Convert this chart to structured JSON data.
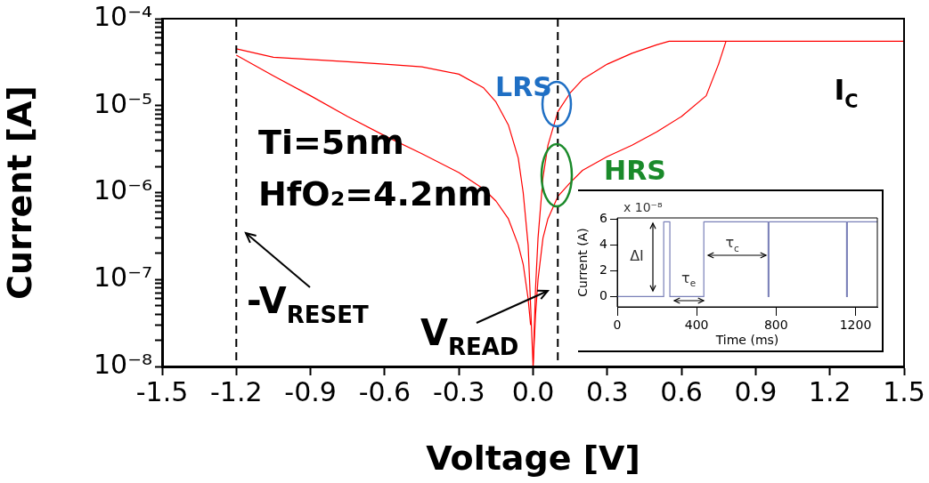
{
  "chart_data": [
    {
      "type": "line",
      "xlabel": "Voltage [V]",
      "ylabel": "Current [A]",
      "log": "y",
      "grid": false,
      "legend": false,
      "xlim": [
        -1.5,
        1.5
      ],
      "xticks": [
        -1.5,
        -1.2,
        -0.9,
        -0.6,
        -0.3,
        {
          "value": 0,
          "label": "0.0"
        },
        0.3,
        0.6,
        0.9,
        1.2,
        1.5
      ],
      "ylim": [
        1e-08,
        0.0001
      ],
      "yticks": [
        {
          "value": 1e-08,
          "label": "10⁻⁸"
        },
        {
          "value": 2e-08,
          "label": null
        },
        {
          "value": 3e-08,
          "label": null
        },
        {
          "value": 4e-08,
          "label": null
        },
        {
          "value": 5e-08,
          "label": null
        },
        {
          "value": 6e-08,
          "label": null
        },
        {
          "value": 7e-08,
          "label": null
        },
        {
          "value": 8e-08,
          "label": null
        },
        {
          "value": 9e-08,
          "label": null
        },
        {
          "value": 1e-07,
          "label": "10⁻⁷"
        },
        {
          "value": 2e-07,
          "label": null
        },
        {
          "value": 3e-07,
          "label": null
        },
        {
          "value": 4e-07,
          "label": null
        },
        {
          "value": 5e-07,
          "label": null
        },
        {
          "value": 6e-07,
          "label": null
        },
        {
          "value": 7e-07,
          "label": null
        },
        {
          "value": 8e-07,
          "label": null
        },
        {
          "value": 9e-07,
          "label": null
        },
        {
          "value": 1e-06,
          "label": "10⁻⁶"
        },
        {
          "value": 2e-06,
          "label": null
        },
        {
          "value": 3e-06,
          "label": null
        },
        {
          "value": 4e-06,
          "label": null
        },
        {
          "value": 5e-06,
          "label": null
        },
        {
          "value": 6e-06,
          "label": null
        },
        {
          "value": 7e-06,
          "label": null
        },
        {
          "value": 8e-06,
          "label": null
        },
        {
          "value": 9e-06,
          "label": null
        },
        {
          "value": 1e-05,
          "label": "10⁻⁵"
        },
        {
          "value": 2e-05,
          "label": null
        },
        {
          "value": 3e-05,
          "label": null
        },
        {
          "value": 4e-05,
          "label": null
        },
        {
          "value": 5e-05,
          "label": null
        },
        {
          "value": 6e-05,
          "label": null
        },
        {
          "value": 7e-05,
          "label": null
        },
        {
          "value": 8e-05,
          "label": null
        },
        {
          "value": 9e-05,
          "label": null
        },
        {
          "value": 0.0001,
          "label": "10⁻⁴"
        }
      ],
      "series": [
        {
          "color": "#ff0000",
          "x": [
            0,
            -0.01,
            -0.02,
            -0.04,
            -0.06,
            -0.1,
            -0.15,
            -0.2,
            -0.3,
            -0.45,
            -0.6,
            -0.75,
            -0.9,
            -1.05,
            -1.2
          ],
          "values": [
            1e-08,
            5e-08,
            2.5e-07,
            1e-06,
            2.5e-06,
            6e-06,
            1.1e-05,
            1.6e-05,
            2.3e-05,
            2.8e-05,
            3e-05,
            3.2e-05,
            3.4e-05,
            3.6e-05,
            4.5e-05
          ]
        },
        {
          "color": "#ff0000",
          "x": [
            -1.2,
            -1.05,
            -0.9,
            -0.75,
            -0.6,
            -0.45,
            -0.3,
            -0.2,
            -0.15,
            -0.1,
            -0.06,
            -0.04,
            -0.02,
            -0.01
          ],
          "values": [
            3.8e-05,
            2.2e-05,
            1.3e-05,
            7.5e-06,
            4.5e-06,
            2.8e-06,
            1.7e-06,
            1.1e-06,
            8e-07,
            5e-07,
            2.5e-07,
            1.5e-07,
            6e-08,
            3e-08
          ]
        },
        {
          "color": "#ff0000",
          "x": [
            0,
            0.01,
            0.02,
            0.04,
            0.06,
            0.1,
            0.15,
            0.2,
            0.3,
            0.4,
            0.5,
            0.55,
            1.5
          ],
          "values": [
            1e-08,
            8e-08,
            3e-07,
            1.5e-06,
            3.5e-06,
            8.5e-06,
            1.4e-05,
            2e-05,
            3e-05,
            4e-05,
            5e-05,
            5.5e-05,
            5.5e-05
          ]
        },
        {
          "color": "#ff0000",
          "x": [
            0,
            0.01,
            0.02,
            0.04,
            0.06,
            0.1,
            0.15,
            0.2,
            0.3,
            0.4,
            0.5,
            0.6,
            0.7,
            0.75,
            0.78
          ],
          "values": [
            1e-08,
            4e-08,
            1e-07,
            3e-07,
            5e-07,
            9e-07,
            1.3e-06,
            1.8e-06,
            2.6e-06,
            3.5e-06,
            5e-06,
            7.5e-06,
            1.3e-05,
            3e-05,
            5.5e-05
          ]
        }
      ],
      "ref_lines": [
        {
          "axis": "x",
          "value": -1.2,
          "label": "-V$_{RESET}$",
          "line_style": "dashed",
          "color": "#000000"
        },
        {
          "axis": "x",
          "value": 0.1,
          "label": "V$_{READ}$",
          "line_style": "dashed",
          "color": "#000000"
        }
      ],
      "annotations": [
        "Ti=5nm",
        "HfO₂=4.2nm",
        "LRS",
        "HRS",
        "I$_{C}$"
      ]
    },
    {
      "type": "step",
      "xlabel": "Time (ms)",
      "ylabel": "Current (A)",
      "grid": false,
      "legend": false,
      "xlim": [
        0,
        1310
      ],
      "xticks": [
        0,
        400,
        800,
        1200
      ],
      "ylim": [
        -0.8,
        6.1
      ],
      "yticks": [
        0,
        2,
        4,
        6
      ],
      "x": [
        0,
        234,
        265,
        436,
        760,
        764,
        1155,
        1159,
        1310
      ],
      "values": [
        0,
        5.8,
        0,
        5.8,
        0,
        5.8,
        0,
        5.8,
        5.8
      ],
      "color": "#7a80b8",
      "annotations": [
        "x 10⁻⁸",
        "ΔI",
        {
          "text": "τ$_{e}$",
          "x": 359,
          "y": -0.3
        },
        {
          "text": "τ$_{c}$",
          "x": 579,
          "y": 5.8
        }
      ]
    }
  ]
}
